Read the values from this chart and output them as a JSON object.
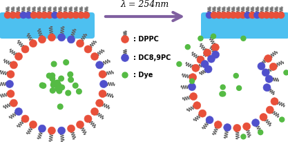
{
  "fig_width": 4.17,
  "fig_height": 2.12,
  "dpi": 100,
  "bg_color": "#ffffff",
  "arrow_color": "#8060a0",
  "lambda_text": "λ = 254nm",
  "monolayer_color": "#4dc0f0",
  "dppc_color": "#e8503a",
  "dc89pc_color": "#5050cc",
  "dye_color": "#55bb44",
  "tail_color": "#606060",
  "label_dppc": ": DPPC",
  "label_dc89": ": DC8,9PC",
  "label_dye": ": Dye"
}
